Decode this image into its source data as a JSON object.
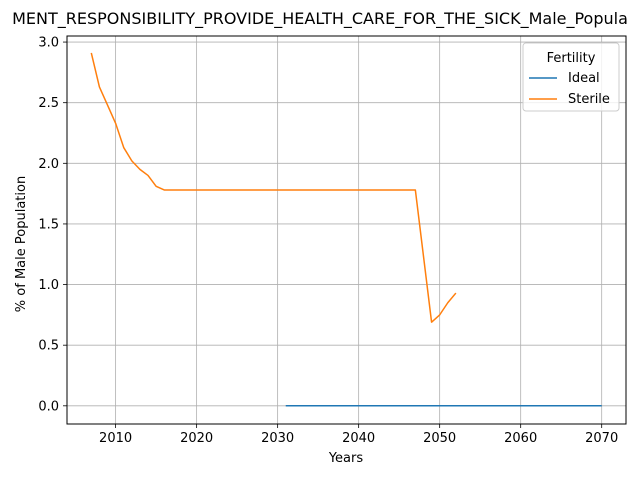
{
  "chart_data": {
    "type": "line",
    "title": "MENT_RESPONSIBILITY_PROVIDE_HEALTH_CARE_FOR_THE_SICK_Male_Popula",
    "xlabel": "Years",
    "ylabel": "% of Male Population",
    "xlim": [
      2004,
      2073
    ],
    "ylim": [
      -0.15,
      3.05
    ],
    "xticks": [
      2010,
      2020,
      2030,
      2040,
      2050,
      2060,
      2070
    ],
    "yticks": [
      0.0,
      0.5,
      1.0,
      1.5,
      2.0,
      2.5,
      3.0
    ],
    "xtick_labels": [
      "2010",
      "2020",
      "2030",
      "2040",
      "2050",
      "2060",
      "2070"
    ],
    "ytick_labels": [
      "0.0",
      "0.5",
      "1.0",
      "1.5",
      "2.0",
      "2.5",
      "3.0"
    ],
    "grid": true,
    "legend": {
      "title": "Fertility",
      "placement": "top-right"
    },
    "series": [
      {
        "name": "Ideal",
        "color": "#1f77b4",
        "x": [
          2031,
          2070
        ],
        "y": [
          0.0,
          0.0
        ]
      },
      {
        "name": "Sterile",
        "color": "#ff7f0e",
        "x": [
          2007,
          2008,
          2009,
          2010,
          2011,
          2012,
          2013,
          2014,
          2015,
          2016,
          2017,
          2047,
          2049,
          2050,
          2051,
          2052
        ],
        "y": [
          2.91,
          2.63,
          2.48,
          2.33,
          2.13,
          2.02,
          1.95,
          1.9,
          1.81,
          1.78,
          1.78,
          1.78,
          0.69,
          0.75,
          0.85,
          0.93
        ]
      }
    ]
  }
}
